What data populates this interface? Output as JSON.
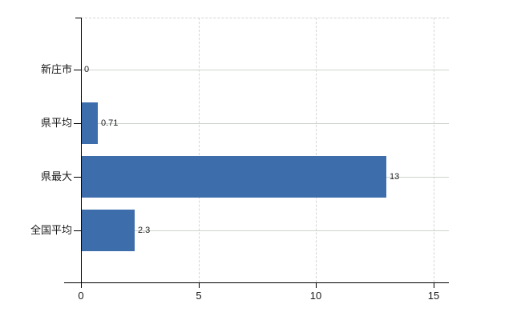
{
  "chart_data": {
    "type": "bar",
    "orientation": "horizontal",
    "title": "",
    "categories": [
      "新庄市",
      "県平均",
      "県最大",
      "全国平均"
    ],
    "values": [
      0,
      0.71,
      13,
      2.3
    ],
    "value_labels": [
      "0",
      "0.71",
      "13",
      "2.3"
    ],
    "x_ticks": [
      0,
      5,
      10,
      15
    ],
    "x_tick_labels": [
      "0",
      "5",
      "10",
      "15"
    ],
    "xlim": [
      0,
      15.7
    ],
    "grid": "on",
    "legend": "none",
    "colors": {
      "bar": "#3d6dab",
      "axis": "#000000",
      "category_gridline": "#ccd3cb",
      "value_gridline": "#d4d4d4",
      "text": "#1a1a1a"
    }
  }
}
